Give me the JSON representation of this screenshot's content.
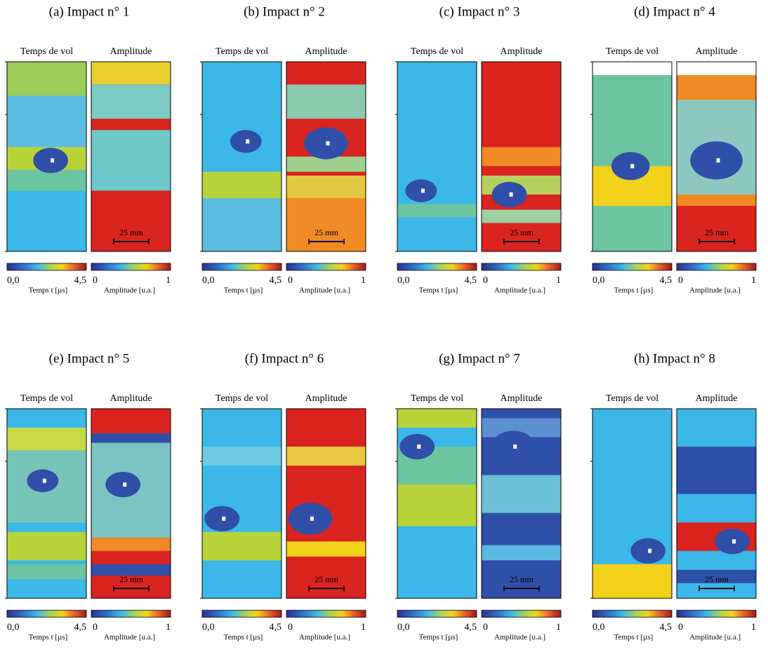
{
  "panels": [
    {
      "title": "(a) Impact n° 1",
      "tof_label": "Temps de vol",
      "amp_label": "Amplitude",
      "scale": "25 mm",
      "tof_min": "0,0",
      "tof_max": "4,5",
      "tof_caption": "Temps t [µs]",
      "amp_min": "0",
      "amp_max": "1",
      "amp_caption": "Amplitude [u.a.]"
    },
    {
      "title": "(b) Impact n° 2",
      "tof_label": "Temps de vol",
      "amp_label": "Amplitude",
      "scale": "25 mm",
      "tof_min": "0,0",
      "tof_max": "4,5",
      "tof_caption": "Temps t [µs]",
      "amp_min": "0",
      "amp_max": "1",
      "amp_caption": "Amplitude [u.a.]"
    },
    {
      "title": "(c) Impact n° 3",
      "tof_label": "Temps de vol",
      "amp_label": "Amplitude",
      "scale": "25 mm",
      "tof_min": "0,0",
      "tof_max": "4,5",
      "tof_caption": "Temps t [µs]",
      "amp_min": "0",
      "amp_max": "1",
      "amp_caption": "Amplitude [u.a.]"
    },
    {
      "title": "(d) Impact n° 4",
      "tof_label": "Temps de vol",
      "amp_label": "Amplitude",
      "scale": "25 mm",
      "tof_min": "0,0",
      "tof_max": "4,5",
      "tof_caption": "Temps t [µs]",
      "amp_min": "0",
      "amp_max": "1",
      "amp_caption": "Amplitude [u.a.]"
    },
    {
      "title": "(e) Impact n° 5",
      "tof_label": "Temps de vol",
      "amp_label": "Amplitude",
      "scale": "25 mm",
      "tof_min": "0,0",
      "tof_max": "4,5",
      "tof_caption": "Temps t [µs]",
      "amp_min": "0",
      "amp_max": "1",
      "amp_caption": "Amplitude [u.a.]"
    },
    {
      "title": "(f) Impact n° 6",
      "tof_label": "Temps de vol",
      "amp_label": "Amplitude",
      "scale": "25 mm",
      "tof_min": "0,0",
      "tof_max": "4,5",
      "tof_caption": "Temps t [µs]",
      "amp_min": "0",
      "amp_max": "1",
      "amp_caption": "Amplitude [u.a.]"
    },
    {
      "title": "(g) Impact n° 7",
      "tof_label": "Temps de vol",
      "amp_label": "Amplitude",
      "scale": "25 mm",
      "tof_min": "0,0",
      "tof_max": "4,5",
      "tof_caption": "Temps t [µs]",
      "amp_min": "0",
      "amp_max": "1",
      "amp_caption": "Amplitude [u.a.]"
    },
    {
      "title": "(h) Impact n° 8",
      "tof_label": "Temps de vol",
      "amp_label": "Amplitude",
      "scale": "25 mm",
      "tof_min": "0,0",
      "tof_max": "4,5",
      "tof_caption": "Temps t [µs]",
      "amp_min": "0",
      "amp_max": "1",
      "amp_caption": "Amplitude [u.a.]"
    }
  ]
}
